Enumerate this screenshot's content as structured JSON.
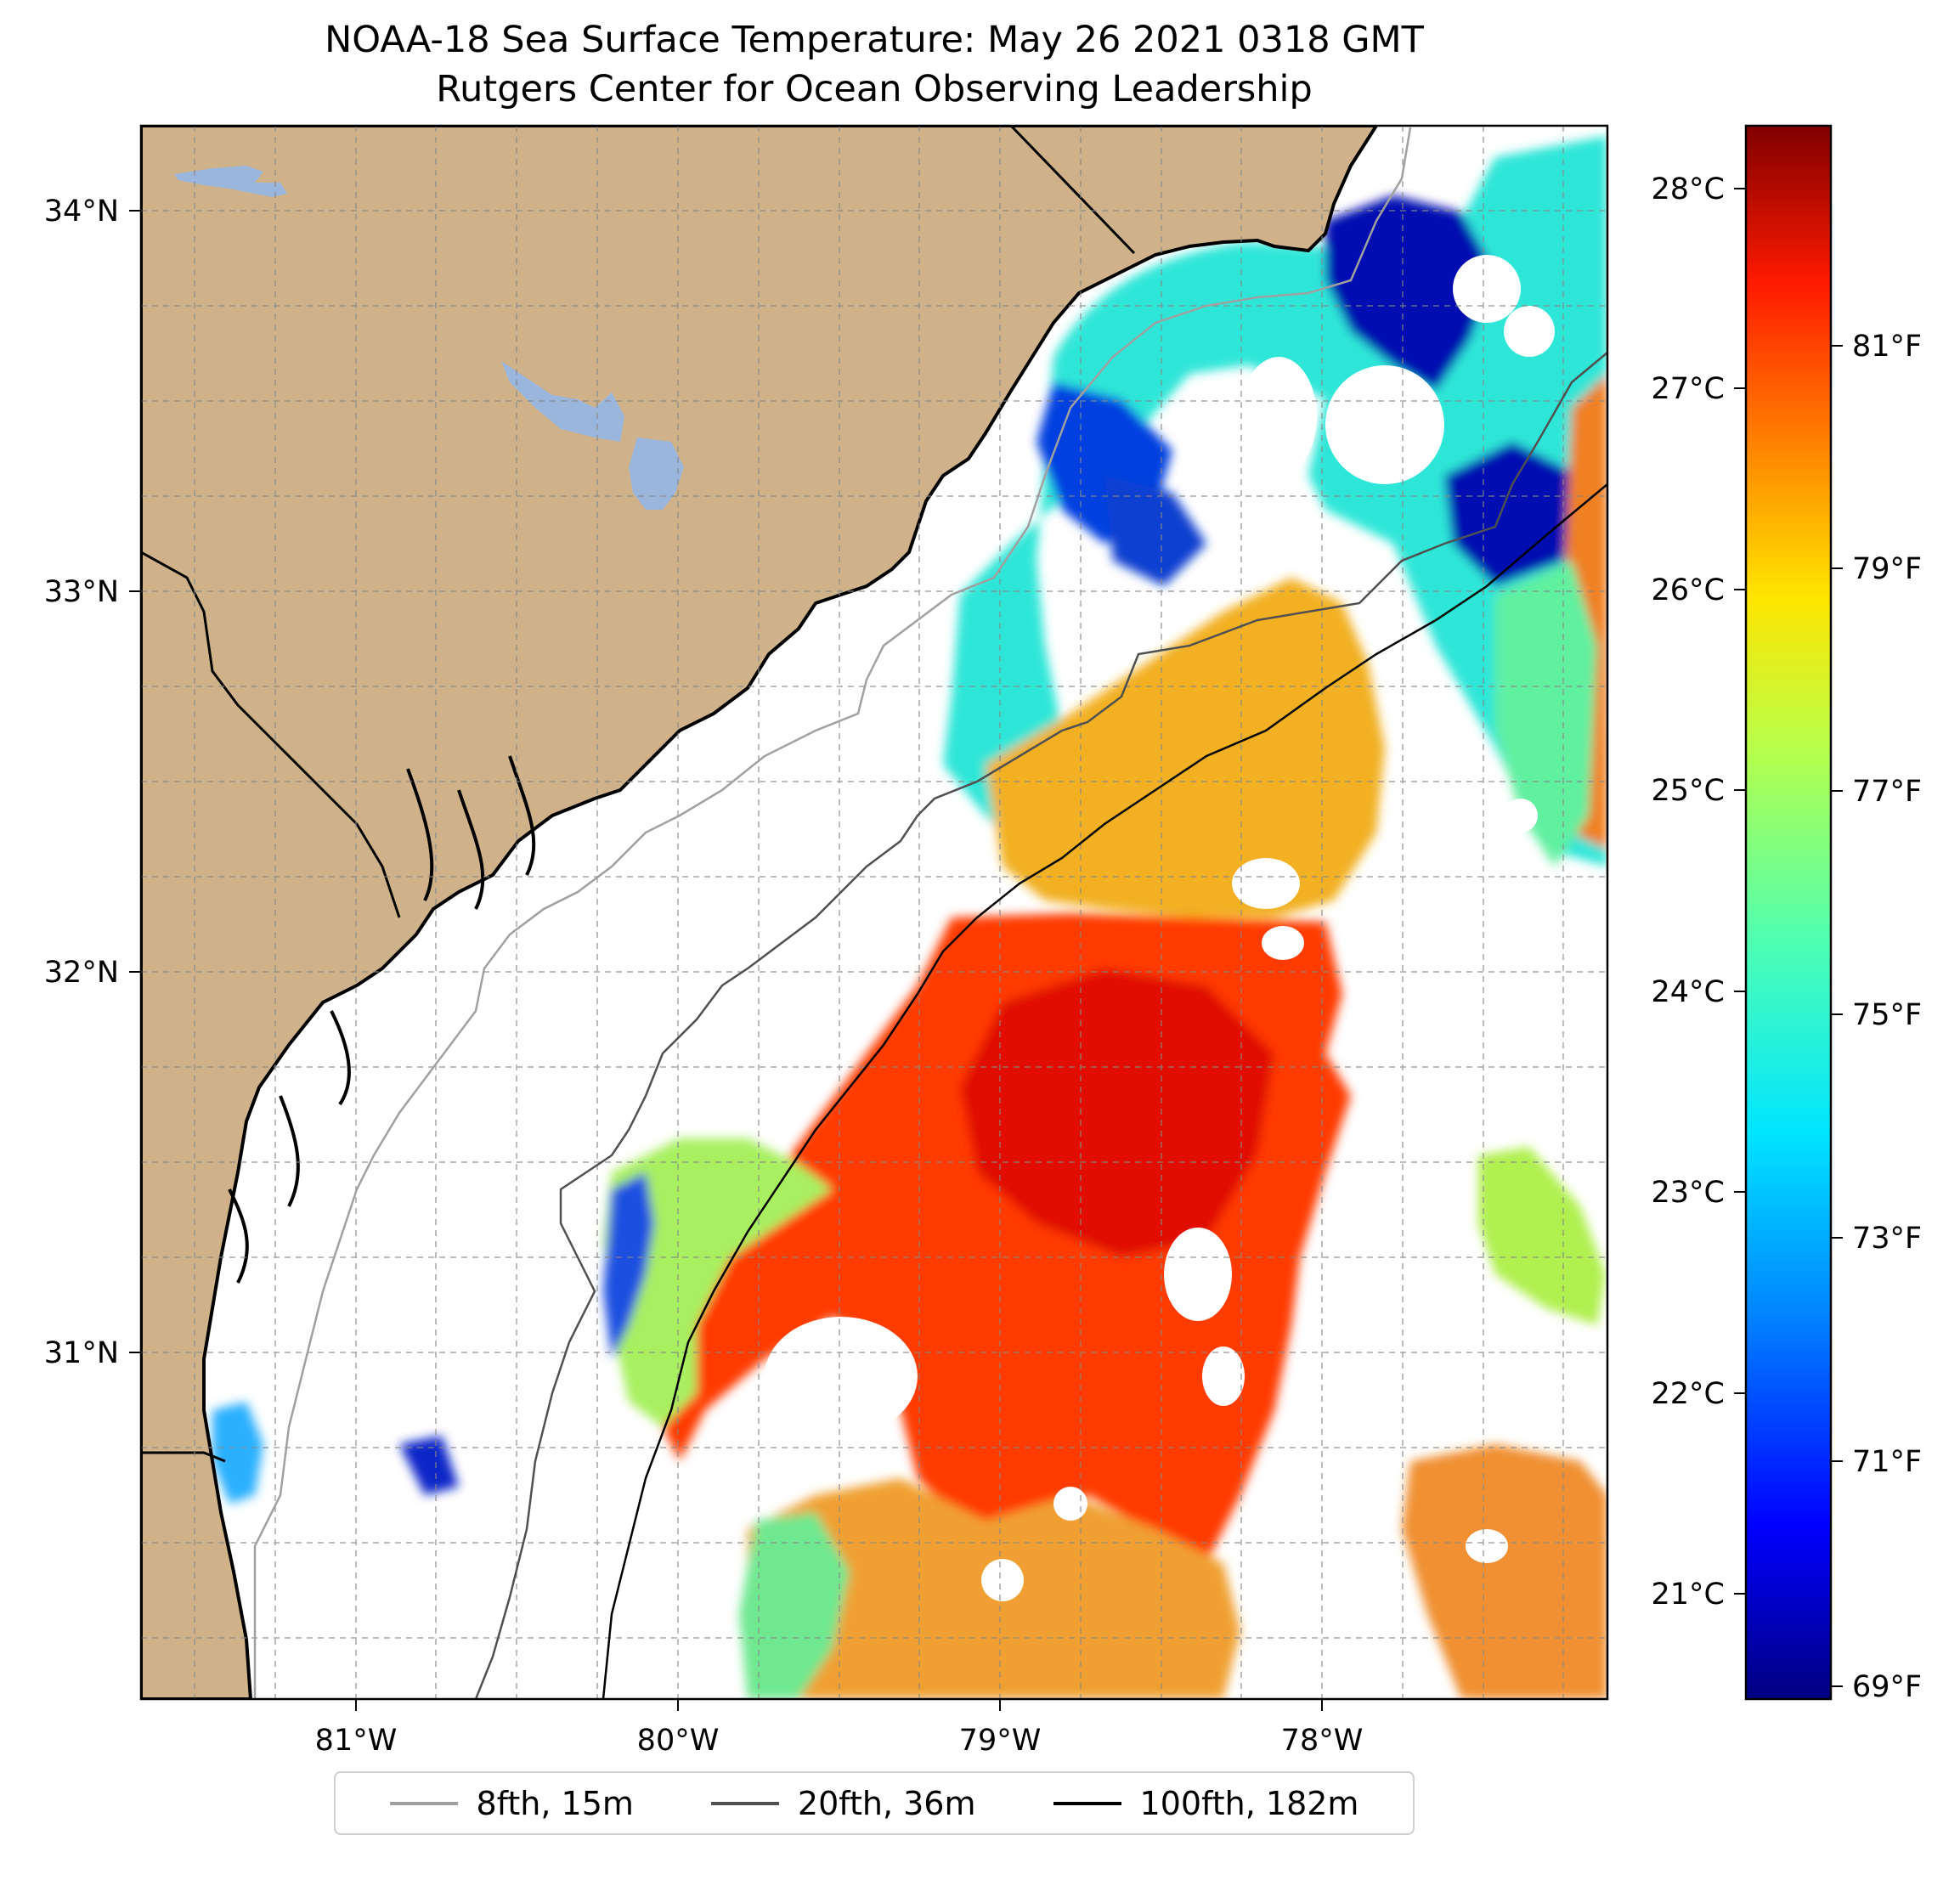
{
  "title": {
    "line1": "NOAA-18 Sea Surface Temperature: May 26 2021 0318 GMT",
    "line2": "Rutgers Center for Ocean Observing Leadership"
  },
  "map": {
    "lon_range": [
      -81.68,
      -77.12
    ],
    "lat_range": [
      30.07,
      34.22
    ],
    "lon_ticks": [
      "81°W",
      "80°W",
      "79°W",
      "78°W"
    ],
    "lat_ticks": [
      "34°N",
      "33°N",
      "32°N",
      "31°N"
    ],
    "gridlines": "dashed",
    "land_color": "#cfb28a",
    "lake_color": "#9ab6dd",
    "ocean_nodata_color": "#ffffff"
  },
  "colorbar": {
    "colormap": "jet",
    "celsius_ticks": [
      "28°C",
      "27°C",
      "26°C",
      "25°C",
      "24°C",
      "23°C",
      "22°C",
      "21°C"
    ],
    "fahrenheit_ticks": [
      "81°F",
      "79°F",
      "77°F",
      "75°F",
      "73°F",
      "71°F",
      "69°F"
    ],
    "range_f": [
      68.9,
      82.9
    ],
    "colors": [
      "#000080",
      "#0000ff",
      "#0080ff",
      "#00e5ff",
      "#4dffb3",
      "#b3ff4d",
      "#ffe600",
      "#ff8000",
      "#ff1a00",
      "#800000"
    ]
  },
  "legend": {
    "items": [
      {
        "label": "8fth, 15m",
        "color": "#a0a0a0"
      },
      {
        "label": "20fth, 36m",
        "color": "#505050"
      },
      {
        "label": "100fth, 182m",
        "color": "#000000"
      }
    ]
  }
}
